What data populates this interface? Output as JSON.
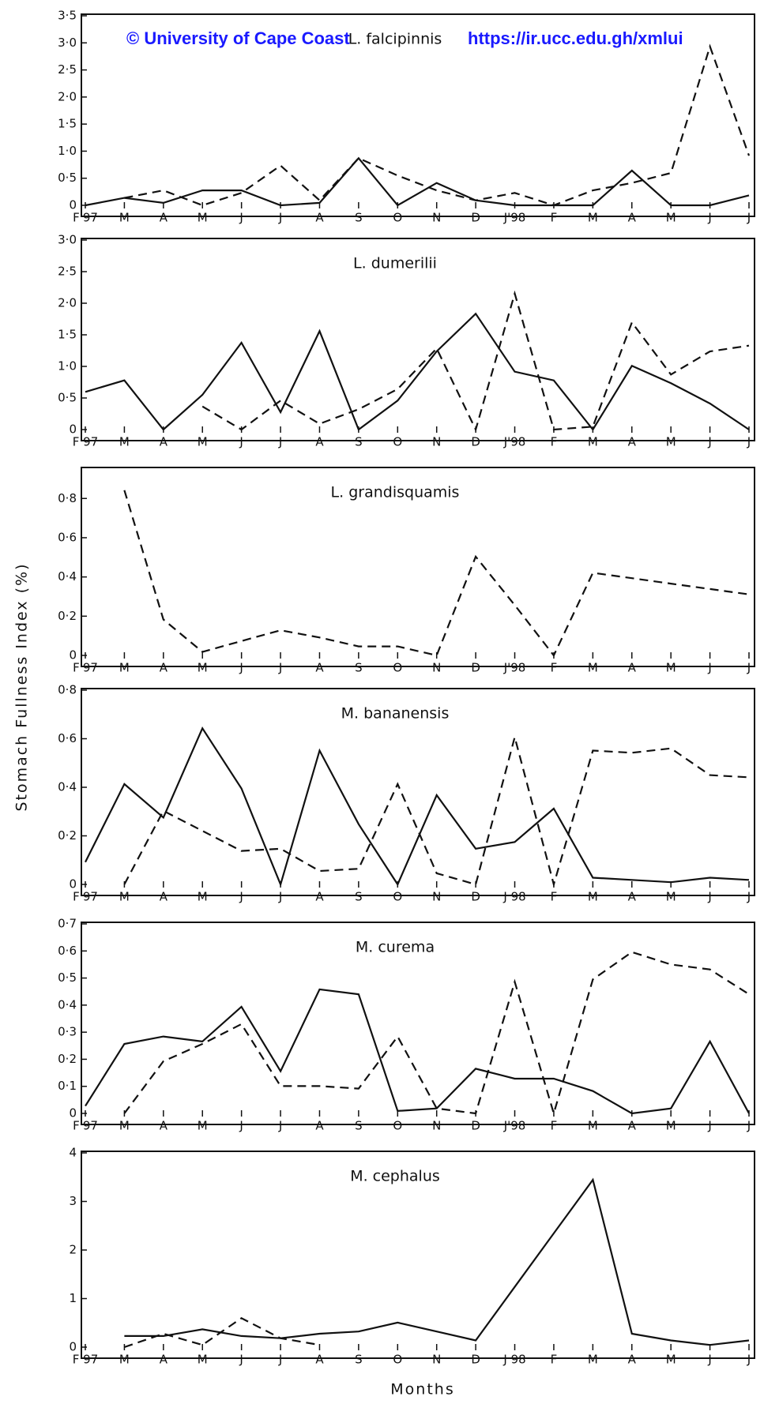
{
  "watermark": [
    "© University of Cape Coast",
    "https://ir.ucc.edu.gh/xmlui"
  ],
  "y_label": "Stomach Fullness Index (%)",
  "x_label": "Months",
  "chart_data": [
    {
      "type": "line",
      "title": "L. falcipinnis",
      "categories": [
        "F'97",
        "M",
        "A",
        "M",
        "J",
        "J",
        "A",
        "S",
        "O",
        "N",
        "D",
        "J'98",
        "F",
        "M",
        "A",
        "M",
        "J",
        "J"
      ],
      "ylim": [
        0,
        3.5
      ],
      "yticks": [
        0,
        {
          "value": 0.5,
          "label": "0·5"
        },
        {
          "value": 1,
          "label": "1·0"
        },
        {
          "value": 1.5,
          "label": "1·5"
        },
        {
          "value": 2,
          "label": "2·0"
        },
        {
          "value": 2.5,
          "label": "2·5"
        },
        {
          "value": 3,
          "label": "3·0"
        },
        {
          "value": 3.5,
          "label": "3·5"
        }
      ],
      "series": [
        {
          "color": "#111111",
          "style": "solid",
          "values": [
            0,
            0.15,
            0.05,
            0.3,
            0.3,
            0,
            0.05,
            0.95,
            0,
            0.45,
            0.1,
            0,
            0,
            0,
            0.7,
            0,
            0,
            0.2
          ]
        },
        {
          "color": "#111111",
          "style": "dashed",
          "values": [
            null,
            0.15,
            0.3,
            0,
            0.25,
            0.8,
            0.1,
            0.95,
            0.6,
            0.3,
            0.1,
            0.25,
            0,
            0.3,
            0.45,
            0.65,
            3.2,
            1.0
          ]
        }
      ]
    },
    {
      "type": "line",
      "title": "L. dumerilii",
      "categories": [
        "F 97",
        "M",
        "A",
        "M",
        "J",
        "J",
        "A",
        "S",
        "O",
        "N",
        "D",
        "J'98",
        "F",
        "M",
        "A",
        "M",
        "J",
        "J"
      ],
      "ylim": [
        0,
        3
      ],
      "yticks": [
        0,
        {
          "value": 0.5,
          "label": "0·5"
        },
        {
          "value": 1,
          "label": "1·0"
        },
        {
          "value": 1.5,
          "label": "1·5"
        },
        {
          "value": 2,
          "label": "2·0"
        },
        {
          "value": 2.5,
          "label": "2·5"
        },
        {
          "value": 3,
          "label": "3·0"
        }
      ],
      "series": [
        {
          "color": "#111111",
          "style": "solid",
          "values": [
            0.65,
            0.85,
            0,
            0.6,
            1.5,
            0.3,
            1.7,
            0,
            0.5,
            1.35,
            2.0,
            1.0,
            0.85,
            0,
            1.1,
            0.8,
            0.45,
            0
          ]
        },
        {
          "color": "#111111",
          "style": "dashed",
          "values": [
            null,
            null,
            null,
            0.4,
            0,
            0.5,
            0.1,
            0.35,
            0.7,
            1.4,
            0,
            2.35,
            0,
            0.05,
            1.85,
            0.95,
            1.35,
            1.45
          ]
        }
      ]
    },
    {
      "type": "line",
      "title": "L. grandisquamis",
      "categories": [
        "F'97",
        "M",
        "A",
        "M",
        "J",
        "J",
        "A",
        "S",
        "O",
        "N",
        "D",
        "J'98",
        "F",
        "M",
        "A",
        "M",
        "J",
        "J"
      ],
      "ylim": [
        0,
        0.95
      ],
      "yticks": [
        0,
        {
          "value": 0.2,
          "label": "0·2"
        },
        {
          "value": 0.4,
          "label": "0·4"
        },
        {
          "value": 0.6,
          "label": "0·6"
        },
        {
          "value": 0.8,
          "label": "0·8"
        }
      ],
      "series": [
        {
          "color": "#111111",
          "style": "dashed",
          "values": [
            null,
            0.92,
            0.2,
            0.02,
            0.08,
            0.14,
            0.1,
            0.05,
            0.05,
            0,
            0.55,
            0.28,
            0,
            0.46,
            0.43,
            0.4,
            0.37,
            0.34
          ]
        }
      ]
    },
    {
      "type": "line",
      "title": "M. bananensis",
      "categories": [
        "F'97",
        "M",
        "A",
        "M",
        "J",
        "J",
        "A",
        "S",
        "O",
        "N",
        "D",
        "J 98",
        "F",
        "M",
        "A",
        "M",
        "J",
        "J"
      ],
      "ylim": [
        0,
        0.8
      ],
      "yticks": [
        0,
        {
          "value": 0.2,
          "label": "0·2"
        },
        {
          "value": 0.4,
          "label": "0·4"
        },
        {
          "value": 0.6,
          "label": "0·6"
        },
        {
          "value": 0.8,
          "label": "0·8"
        }
      ],
      "series": [
        {
          "color": "#111111",
          "style": "solid",
          "values": [
            0.1,
            0.45,
            0.3,
            0.7,
            0.43,
            0,
            0.6,
            0.27,
            0,
            0.4,
            0.16,
            0.19,
            0.34,
            0.03,
            0.02,
            0.01,
            0.03,
            0.02
          ]
        },
        {
          "color": "#111111",
          "style": "dashed",
          "values": [
            null,
            0,
            0.33,
            0.24,
            0.15,
            0.16,
            0.06,
            0.07,
            0.45,
            0.05,
            0,
            0.66,
            0,
            0.6,
            0.59,
            0.61,
            0.49,
            0.48
          ]
        }
      ]
    },
    {
      "type": "line",
      "title": "M. curema",
      "categories": [
        "F'97",
        "M",
        "A",
        "M",
        "J",
        "J",
        "A",
        "S",
        "O",
        "N",
        "D",
        "J'98",
        "F",
        "M",
        "A",
        "M",
        "J",
        "J"
      ],
      "ylim": [
        0,
        0.7
      ],
      "yticks": [
        0,
        {
          "value": 0.1,
          "label": "0·1"
        },
        {
          "value": 0.2,
          "label": "0·2"
        },
        {
          "value": 0.3,
          "label": "0·3"
        },
        {
          "value": 0.4,
          "label": "0·4"
        },
        {
          "value": 0.5,
          "label": "0·5"
        },
        {
          "value": 0.6,
          "label": "0·6"
        },
        {
          "value": 0.7,
          "label": "0·7"
        }
      ],
      "series": [
        {
          "color": "#111111",
          "style": "solid",
          "values": [
            0.03,
            0.28,
            0.31,
            0.29,
            0.43,
            0.17,
            0.5,
            0.48,
            0.01,
            0.02,
            0.18,
            0.14,
            0.14,
            0.09,
            0,
            0.02,
            0.29,
            0
          ]
        },
        {
          "color": "#111111",
          "style": "dashed",
          "values": [
            null,
            0,
            0.21,
            0.28,
            0.36,
            0.11,
            0.11,
            0.1,
            0.31,
            0.02,
            0,
            0.53,
            0,
            0.54,
            0.65,
            0.6,
            0.58,
            0.48
          ]
        }
      ]
    },
    {
      "type": "line",
      "title": "M. cephalus",
      "categories": [
        "F 97",
        "M",
        "A",
        "M",
        "J",
        "J",
        "A",
        "S",
        "O",
        "N",
        "D",
        "J 98",
        "F",
        "M",
        "A",
        "M",
        "J",
        "J"
      ],
      "ylim": [
        0,
        4
      ],
      "yticks": [
        0,
        1,
        2,
        3,
        4
      ],
      "series": [
        {
          "color": "#111111",
          "style": "solid",
          "values": [
            null,
            0.25,
            0.25,
            0.4,
            0.25,
            0.2,
            0.3,
            0.35,
            0.55,
            0.35,
            0.15,
            1.35,
            2.55,
            3.75,
            0.3,
            0.15,
            0.05,
            0.15
          ]
        },
        {
          "color": "#111111",
          "style": "dashed",
          "values": [
            null,
            0,
            0.3,
            0.05,
            0.65,
            0.2,
            0.05,
            null,
            null,
            null,
            null,
            null,
            null,
            null,
            null,
            null,
            null,
            null
          ]
        }
      ]
    }
  ]
}
